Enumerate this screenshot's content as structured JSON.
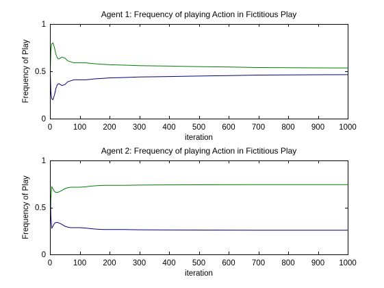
{
  "chart_data": [
    {
      "type": "line",
      "title": "Agent 1: Frequency of playing Action in Fictitious Play",
      "xlabel": "iteration",
      "ylabel": "Frequency of Play",
      "xlim": [
        0,
        1000
      ],
      "ylim": [
        0,
        1
      ],
      "xticks": [
        0,
        100,
        200,
        300,
        400,
        500,
        600,
        700,
        800,
        900,
        1000
      ],
      "yticks": [
        0,
        0.5,
        1
      ],
      "ytick_labels": [
        "0",
        "0.5",
        "1"
      ],
      "grid": false,
      "series": [
        {
          "color": "#007f00",
          "x": [
            1,
            3,
            6,
            10,
            15,
            20,
            25,
            30,
            40,
            50,
            60,
            70,
            80,
            90,
            100,
            120,
            150,
            200,
            250,
            300,
            400,
            500,
            600,
            700,
            800,
            900,
            1000
          ],
          "y": [
            0.5,
            0.72,
            0.79,
            0.8,
            0.75,
            0.68,
            0.64,
            0.63,
            0.65,
            0.64,
            0.61,
            0.6,
            0.59,
            0.59,
            0.59,
            0.59,
            0.58,
            0.57,
            0.565,
            0.56,
            0.555,
            0.55,
            0.545,
            0.54,
            0.538,
            0.536,
            0.535
          ]
        },
        {
          "color": "#00007f",
          "x": [
            1,
            3,
            6,
            10,
            15,
            20,
            25,
            30,
            40,
            50,
            60,
            70,
            80,
            90,
            100,
            120,
            150,
            200,
            250,
            300,
            400,
            500,
            600,
            700,
            800,
            900,
            1000
          ],
          "y": [
            0.5,
            0.28,
            0.21,
            0.2,
            0.25,
            0.32,
            0.36,
            0.37,
            0.35,
            0.36,
            0.39,
            0.4,
            0.41,
            0.41,
            0.41,
            0.41,
            0.42,
            0.43,
            0.435,
            0.44,
            0.445,
            0.45,
            0.455,
            0.46,
            0.462,
            0.464,
            0.465
          ]
        }
      ]
    },
    {
      "type": "line",
      "title": "Agent 2: Frequency of playing Action in Fictitious Play",
      "xlabel": "iteration",
      "ylabel": "Frequency of Play",
      "xlim": [
        0,
        1000
      ],
      "ylim": [
        0,
        1
      ],
      "xticks": [
        0,
        100,
        200,
        300,
        400,
        500,
        600,
        700,
        800,
        900,
        1000
      ],
      "yticks": [
        0,
        0.5,
        1
      ],
      "ytick_labels": [
        "0",
        "0.5",
        "1"
      ],
      "grid": false,
      "series": [
        {
          "color": "#007f00",
          "x": [
            1,
            3,
            6,
            10,
            15,
            20,
            25,
            30,
            40,
            50,
            60,
            70,
            80,
            100,
            120,
            150,
            180,
            200,
            250,
            300,
            400,
            500,
            600,
            700,
            800,
            900,
            1000
          ],
          "y": [
            0.35,
            0.6,
            0.72,
            0.7,
            0.67,
            0.66,
            0.66,
            0.665,
            0.68,
            0.7,
            0.71,
            0.715,
            0.715,
            0.715,
            0.72,
            0.73,
            0.735,
            0.735,
            0.735,
            0.738,
            0.74,
            0.741,
            0.742,
            0.743,
            0.743,
            0.743,
            0.743
          ]
        },
        {
          "color": "#00007f",
          "x": [
            1,
            3,
            6,
            10,
            15,
            20,
            25,
            30,
            40,
            50,
            60,
            70,
            80,
            100,
            120,
            150,
            180,
            200,
            250,
            300,
            400,
            500,
            600,
            700,
            800,
            900,
            1000
          ],
          "y": [
            0.65,
            0.4,
            0.28,
            0.3,
            0.33,
            0.34,
            0.34,
            0.335,
            0.32,
            0.3,
            0.29,
            0.285,
            0.285,
            0.285,
            0.28,
            0.27,
            0.265,
            0.265,
            0.265,
            0.262,
            0.26,
            0.259,
            0.258,
            0.257,
            0.257,
            0.257,
            0.257
          ]
        }
      ]
    }
  ]
}
